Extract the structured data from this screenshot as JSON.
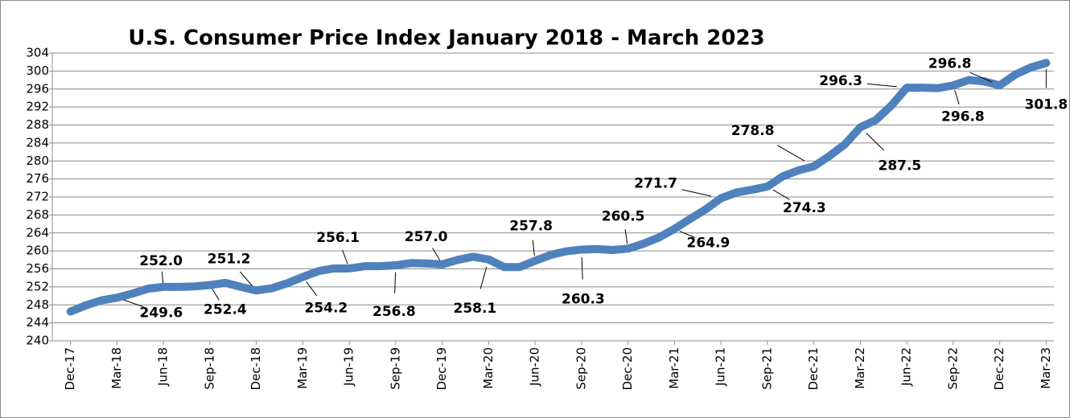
{
  "chart_data": {
    "type": "line",
    "title": "U.S. Consumer Price Index January 2018 - March 2023",
    "categories": [
      "Dec-17",
      null,
      null,
      "Mar-18",
      null,
      null,
      "Jun-18",
      null,
      null,
      "Sep-18",
      null,
      null,
      "Dec-18",
      null,
      null,
      "Mar-19",
      null,
      null,
      "Jun-19",
      null,
      null,
      "Sep-19",
      null,
      null,
      "Dec-19",
      null,
      null,
      "Mar-20",
      null,
      null,
      "Jun-20",
      null,
      null,
      "Sep-20",
      null,
      null,
      "Dec-20",
      null,
      null,
      "Mar-21",
      null,
      null,
      "Jun-21",
      null,
      null,
      "Sep-21",
      null,
      null,
      "Dec-21",
      null,
      null,
      "Mar-22",
      null,
      null,
      "Jun-22",
      null,
      null,
      "Sep-22",
      null,
      null,
      "Dec-22",
      null,
      null,
      "Mar-23"
    ],
    "values": [
      246.5,
      247.9,
      249.0,
      249.6,
      250.5,
      251.6,
      252.0,
      252.0,
      252.1,
      252.4,
      252.9,
      252.0,
      251.2,
      251.7,
      252.8,
      254.2,
      255.5,
      256.1,
      256.1,
      256.6,
      256.6,
      256.8,
      257.3,
      257.2,
      257.0,
      258.0,
      258.7,
      258.1,
      256.4,
      256.4,
      257.8,
      259.1,
      259.9,
      260.3,
      260.4,
      260.2,
      260.5,
      261.6,
      263.0,
      264.9,
      267.1,
      269.2,
      271.7,
      273.0,
      273.6,
      274.3,
      276.6,
      277.9,
      278.8,
      281.1,
      283.7,
      287.5,
      289.1,
      292.3,
      296.3,
      296.3,
      296.2,
      296.8,
      298.0,
      297.7,
      296.8,
      299.2,
      300.8,
      301.8
    ],
    "value_labels": [
      null,
      null,
      null,
      "249.6",
      null,
      null,
      "252.0",
      null,
      null,
      "252.4",
      null,
      null,
      "251.2",
      null,
      null,
      "254.2",
      null,
      null,
      "256.1",
      null,
      null,
      "256.8",
      null,
      null,
      "257.0",
      null,
      null,
      "258.1",
      null,
      null,
      "257.8",
      null,
      null,
      "260.3",
      null,
      null,
      "260.5",
      null,
      null,
      "264.9",
      null,
      null,
      "271.7",
      null,
      null,
      "274.3",
      null,
      null,
      "278.8",
      null,
      null,
      "287.5",
      null,
      null,
      "296.3",
      null,
      null,
      "296.8",
      null,
      null,
      "296.8",
      null,
      null,
      "301.8"
    ],
    "color": "#4f81bd",
    "ylim": [
      240,
      304
    ],
    "yticks": [
      240,
      244,
      248,
      252,
      256,
      260,
      264,
      268,
      272,
      276,
      280,
      284,
      288,
      292,
      296,
      300,
      304
    ],
    "grid": true
  }
}
